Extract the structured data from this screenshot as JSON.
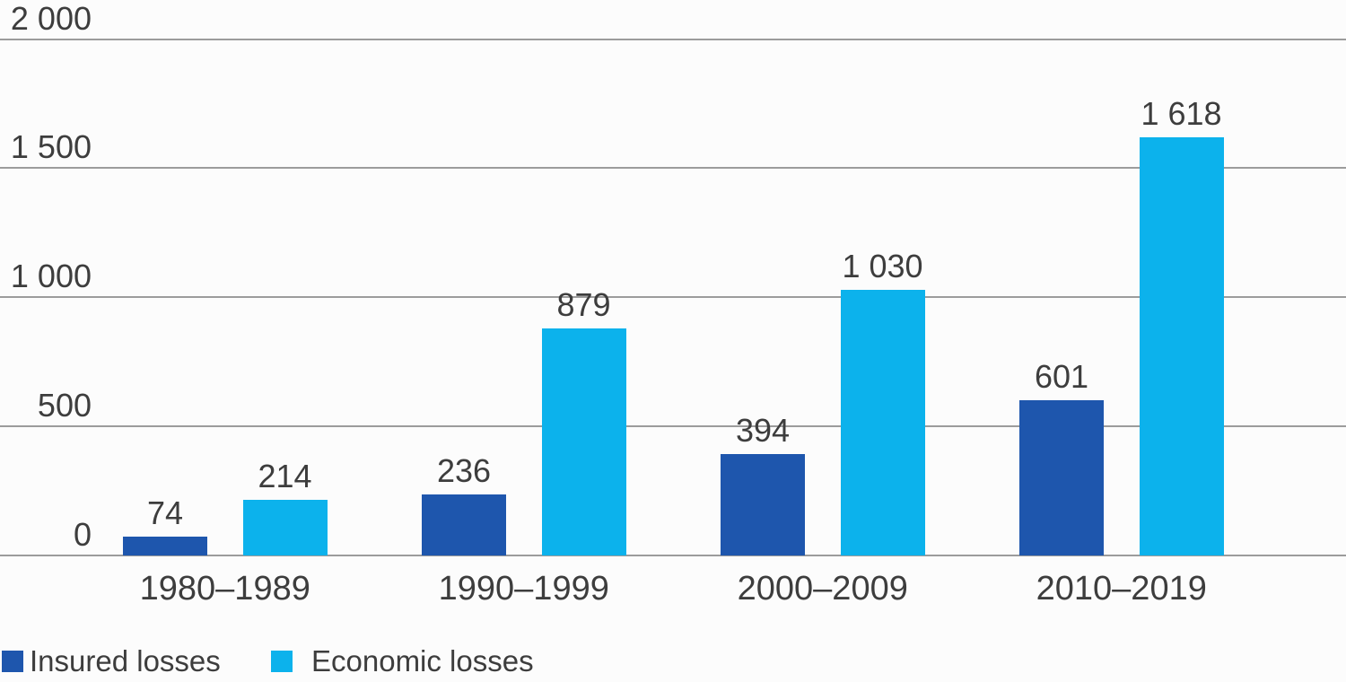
{
  "colors": {
    "insured": "#1e56ad",
    "economic": "#0cb2ec",
    "gridline": "#9c9c9c",
    "text": "#3d3d3d",
    "background": "#fcfcfc"
  },
  "legend": {
    "items": [
      {
        "label": "Insured losses",
        "series": "insured"
      },
      {
        "label": "Economic losses",
        "series": "economic"
      }
    ]
  },
  "chart_data": {
    "type": "bar",
    "title": "",
    "categories": [
      "1980–1989",
      "1990–1999",
      "2000–2009",
      "2010–2019"
    ],
    "series": [
      {
        "name": "Insured losses",
        "color": "#1e56ad",
        "values": [
          74,
          236,
          394,
          601
        ],
        "value_labels": [
          "74",
          "236",
          "394",
          "601"
        ]
      },
      {
        "name": "Economic losses",
        "color": "#0cb2ec",
        "values": [
          214,
          879,
          1030,
          1618
        ],
        "value_labels": [
          "214",
          "879",
          "1 030",
          "1 618"
        ]
      }
    ],
    "y_axis": {
      "min": 0,
      "max": 2000,
      "ticks": [
        0,
        500,
        1000,
        1500,
        2000
      ],
      "tick_labels": [
        "0",
        "500",
        "1 000",
        "1 500",
        "2 000"
      ]
    },
    "grid": true,
    "value_labels_shown": true,
    "legend_position": "bottom-left"
  }
}
